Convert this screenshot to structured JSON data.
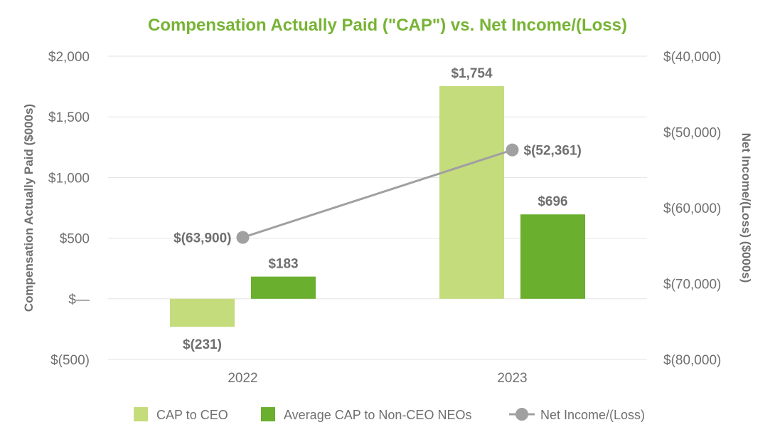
{
  "chart_data": {
    "type": "bar",
    "title": "Compensation Actually Paid (\"CAP\") vs. Net Income/(Loss)",
    "categories": [
      "2022",
      "2023"
    ],
    "series": [
      {
        "name": "CAP to CEO",
        "type": "bar",
        "axis": "left",
        "color": "#c5dc7d",
        "values": [
          -231,
          1754
        ],
        "labels": [
          "$(231)",
          "$1,754"
        ]
      },
      {
        "name": "Average CAP to Non-CEO NEOs",
        "type": "bar",
        "axis": "left",
        "color": "#6aaf2e",
        "values": [
          183,
          696
        ],
        "labels": [
          "$183",
          "$696"
        ]
      },
      {
        "name": "Net Income/(Loss)",
        "type": "line",
        "axis": "right",
        "color": "#a0a0a0",
        "values": [
          -63900,
          -52361
        ],
        "labels": [
          "$(63,900)",
          "$(52,361)"
        ]
      }
    ],
    "y_left": {
      "label": "Compensation Actually Paid ($000s)",
      "range": [
        -500,
        2000
      ],
      "ticks": [
        2000,
        1500,
        1000,
        500,
        0,
        -500
      ],
      "tick_labels": [
        "$2,000",
        "$1,500",
        "$1,000",
        "$500",
        "$—",
        "$(500)"
      ]
    },
    "y_right": {
      "label": "Net Income/(Loss) ($000s)",
      "range": [
        -80000,
        -40000
      ],
      "ticks": [
        -40000,
        -50000,
        -60000,
        -70000,
        -80000
      ],
      "tick_labels": [
        "$(40,000)",
        "$(50,000)",
        "$(60,000)",
        "$(70,000)",
        "$(80,000)"
      ]
    },
    "grid": true,
    "legend": "bottom",
    "title_color": "#77b334"
  }
}
